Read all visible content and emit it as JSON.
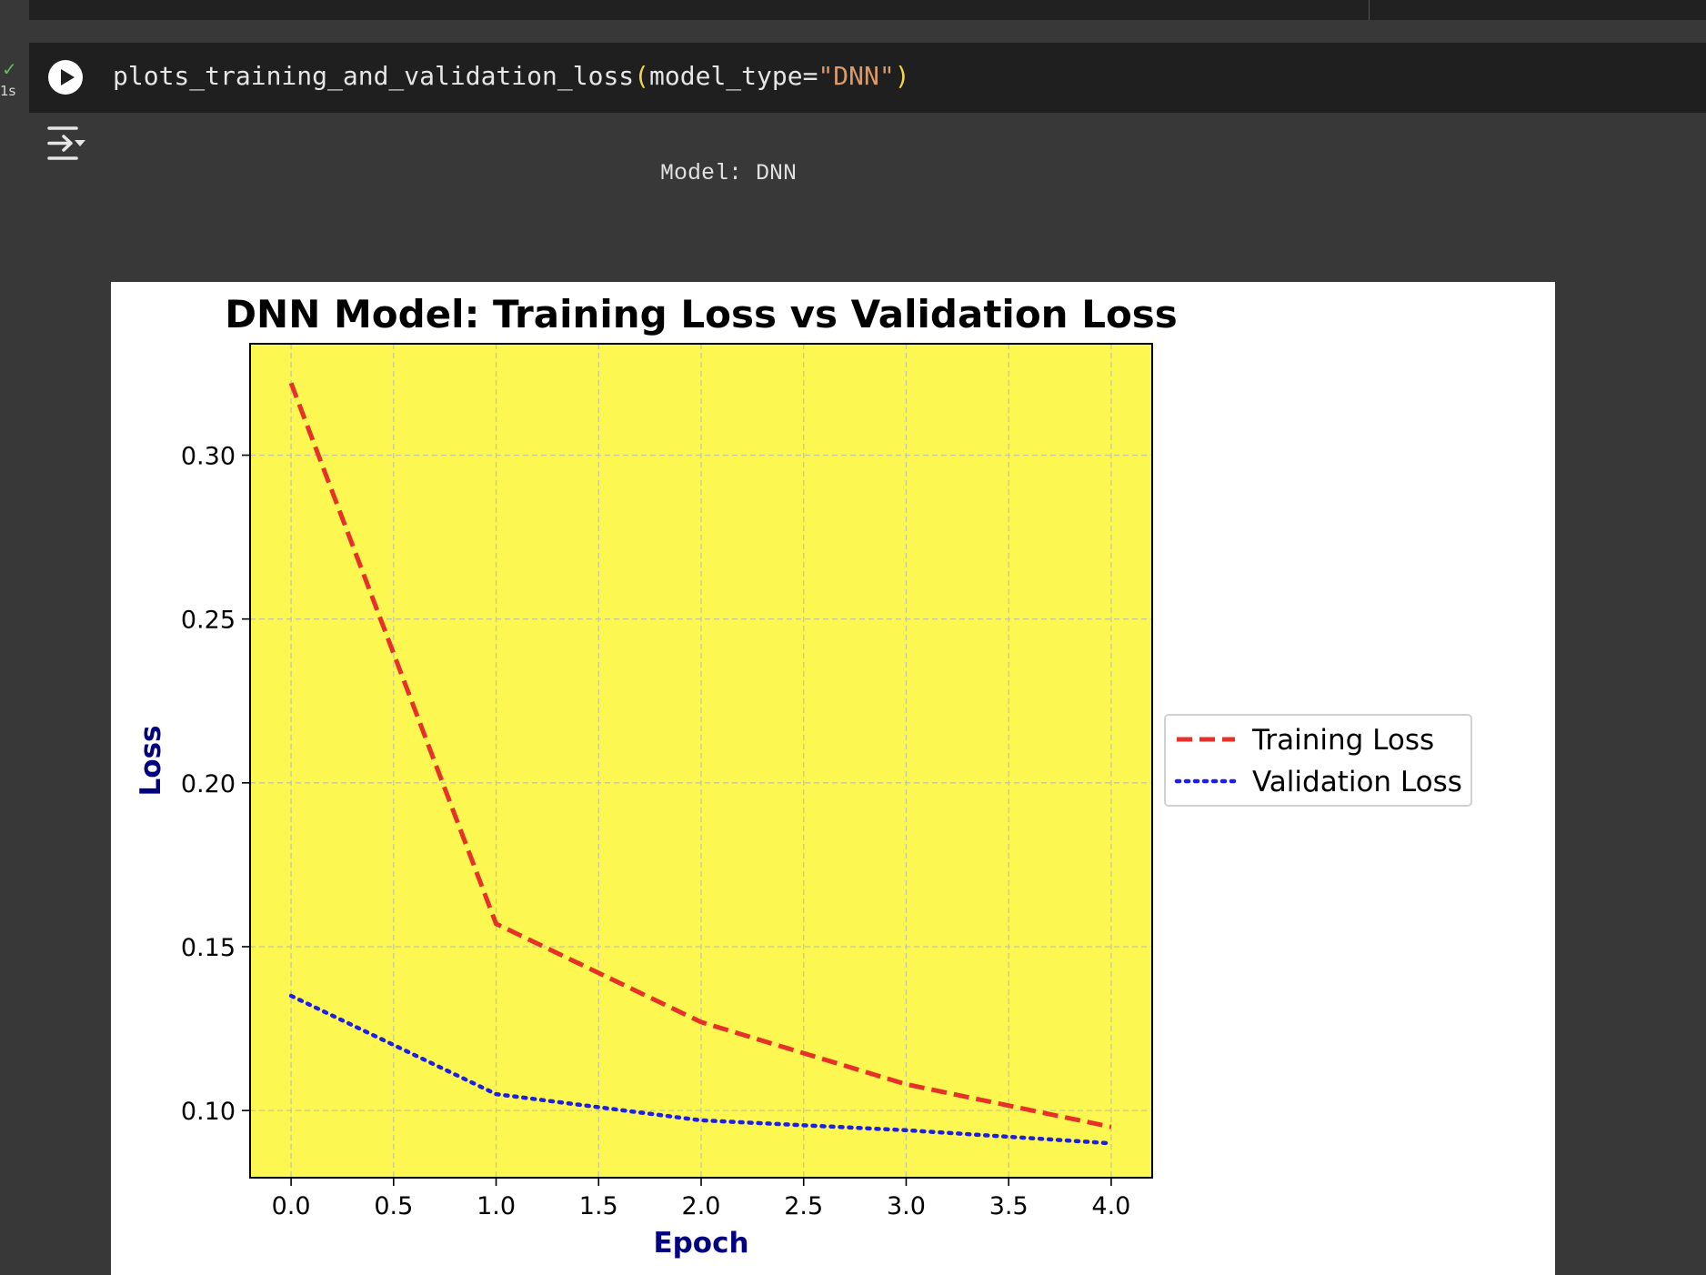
{
  "cell": {
    "status_time": "1s",
    "code": {
      "fn": "plots_training_and_validation_loss",
      "open_paren": "(",
      "kwarg": "model_type=",
      "arg": "\"DNN\"",
      "close_paren": ")"
    }
  },
  "output": {
    "stdout": "Model: DNN"
  },
  "icons": {
    "status": "checkmark-icon",
    "run": "play-icon",
    "output_toggle": "output-collapse-icon"
  },
  "chart_data": {
    "type": "line",
    "title": "DNN Model: Training Loss vs Validation Loss",
    "xlabel": "Epoch",
    "ylabel": "Loss",
    "xlim": [
      -0.2,
      4.2
    ],
    "ylim": [
      0.0795,
      0.334
    ],
    "xticks": [
      "0.0",
      "0.5",
      "1.0",
      "1.5",
      "2.0",
      "2.5",
      "3.0",
      "3.5",
      "4.0"
    ],
    "yticks": [
      "0.10",
      "0.15",
      "0.20",
      "0.25",
      "0.30"
    ],
    "grid": true,
    "background": "#fcf751",
    "legend_position": "outside-right",
    "x": [
      0,
      1,
      2,
      3,
      4
    ],
    "series": [
      {
        "name": "Training Loss",
        "values": [
          0.322,
          0.157,
          0.127,
          0.108,
          0.095
        ],
        "color": "#e8302a",
        "style": "dashed"
      },
      {
        "name": "Validation Loss",
        "values": [
          0.135,
          0.105,
          0.097,
          0.094,
          0.09
        ],
        "color": "#1d1ee8",
        "style": "dotted"
      }
    ]
  }
}
